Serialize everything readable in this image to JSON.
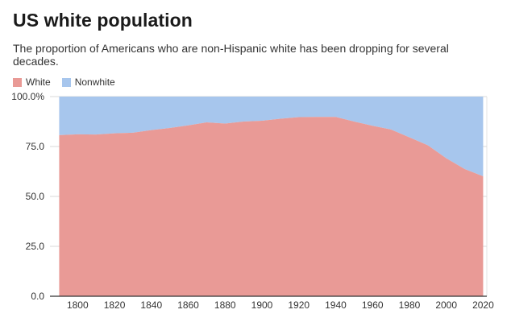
{
  "header": {
    "title": "US white population",
    "subtitle": "The proportion of Americans who are non-Hispanic white has been dropping for several decades."
  },
  "legend": {
    "items": [
      {
        "label": "White",
        "color": "#e99a96"
      },
      {
        "label": "Nonwhite",
        "color": "#a7c6ed"
      }
    ]
  },
  "chart_data": {
    "type": "area",
    "stacked": true,
    "normalized_percent": true,
    "title": "US white population",
    "subtitle": "The proportion of Americans who are non-Hispanic white has been dropping for several decades.",
    "x": [
      1790,
      1800,
      1810,
      1820,
      1830,
      1840,
      1850,
      1860,
      1870,
      1880,
      1890,
      1900,
      1910,
      1920,
      1930,
      1940,
      1950,
      1960,
      1970,
      1980,
      1990,
      2000,
      2010,
      2020
    ],
    "series": [
      {
        "name": "White",
        "color": "#e99a96",
        "values": [
          80.7,
          81.1,
          81.0,
          81.6,
          81.9,
          83.2,
          84.3,
          85.6,
          87.1,
          86.5,
          87.5,
          87.9,
          88.9,
          89.7,
          89.8,
          89.8,
          87.5,
          85.4,
          83.5,
          79.6,
          75.6,
          69.1,
          63.7,
          60.1
        ]
      },
      {
        "name": "Nonwhite",
        "color": "#a7c6ed",
        "values": [
          19.3,
          18.9,
          19.0,
          18.4,
          18.1,
          16.8,
          15.7,
          14.4,
          12.9,
          13.5,
          12.5,
          12.1,
          11.1,
          10.3,
          10.2,
          10.2,
          12.5,
          14.6,
          16.5,
          20.4,
          24.4,
          30.9,
          36.3,
          39.9
        ]
      }
    ],
    "x_ticks": [
      "1800",
      "1820",
      "1840",
      "1860",
      "1880",
      "1900",
      "1920",
      "1940",
      "1960",
      "1980",
      "2000",
      "2020"
    ],
    "y_ticks": [
      "0.0",
      "25.0",
      "50.0",
      "75.0",
      "100.0%"
    ],
    "xlim": [
      1785,
      2022
    ],
    "ylim": [
      0,
      100
    ],
    "grid": true,
    "legend_position": "top-left"
  }
}
